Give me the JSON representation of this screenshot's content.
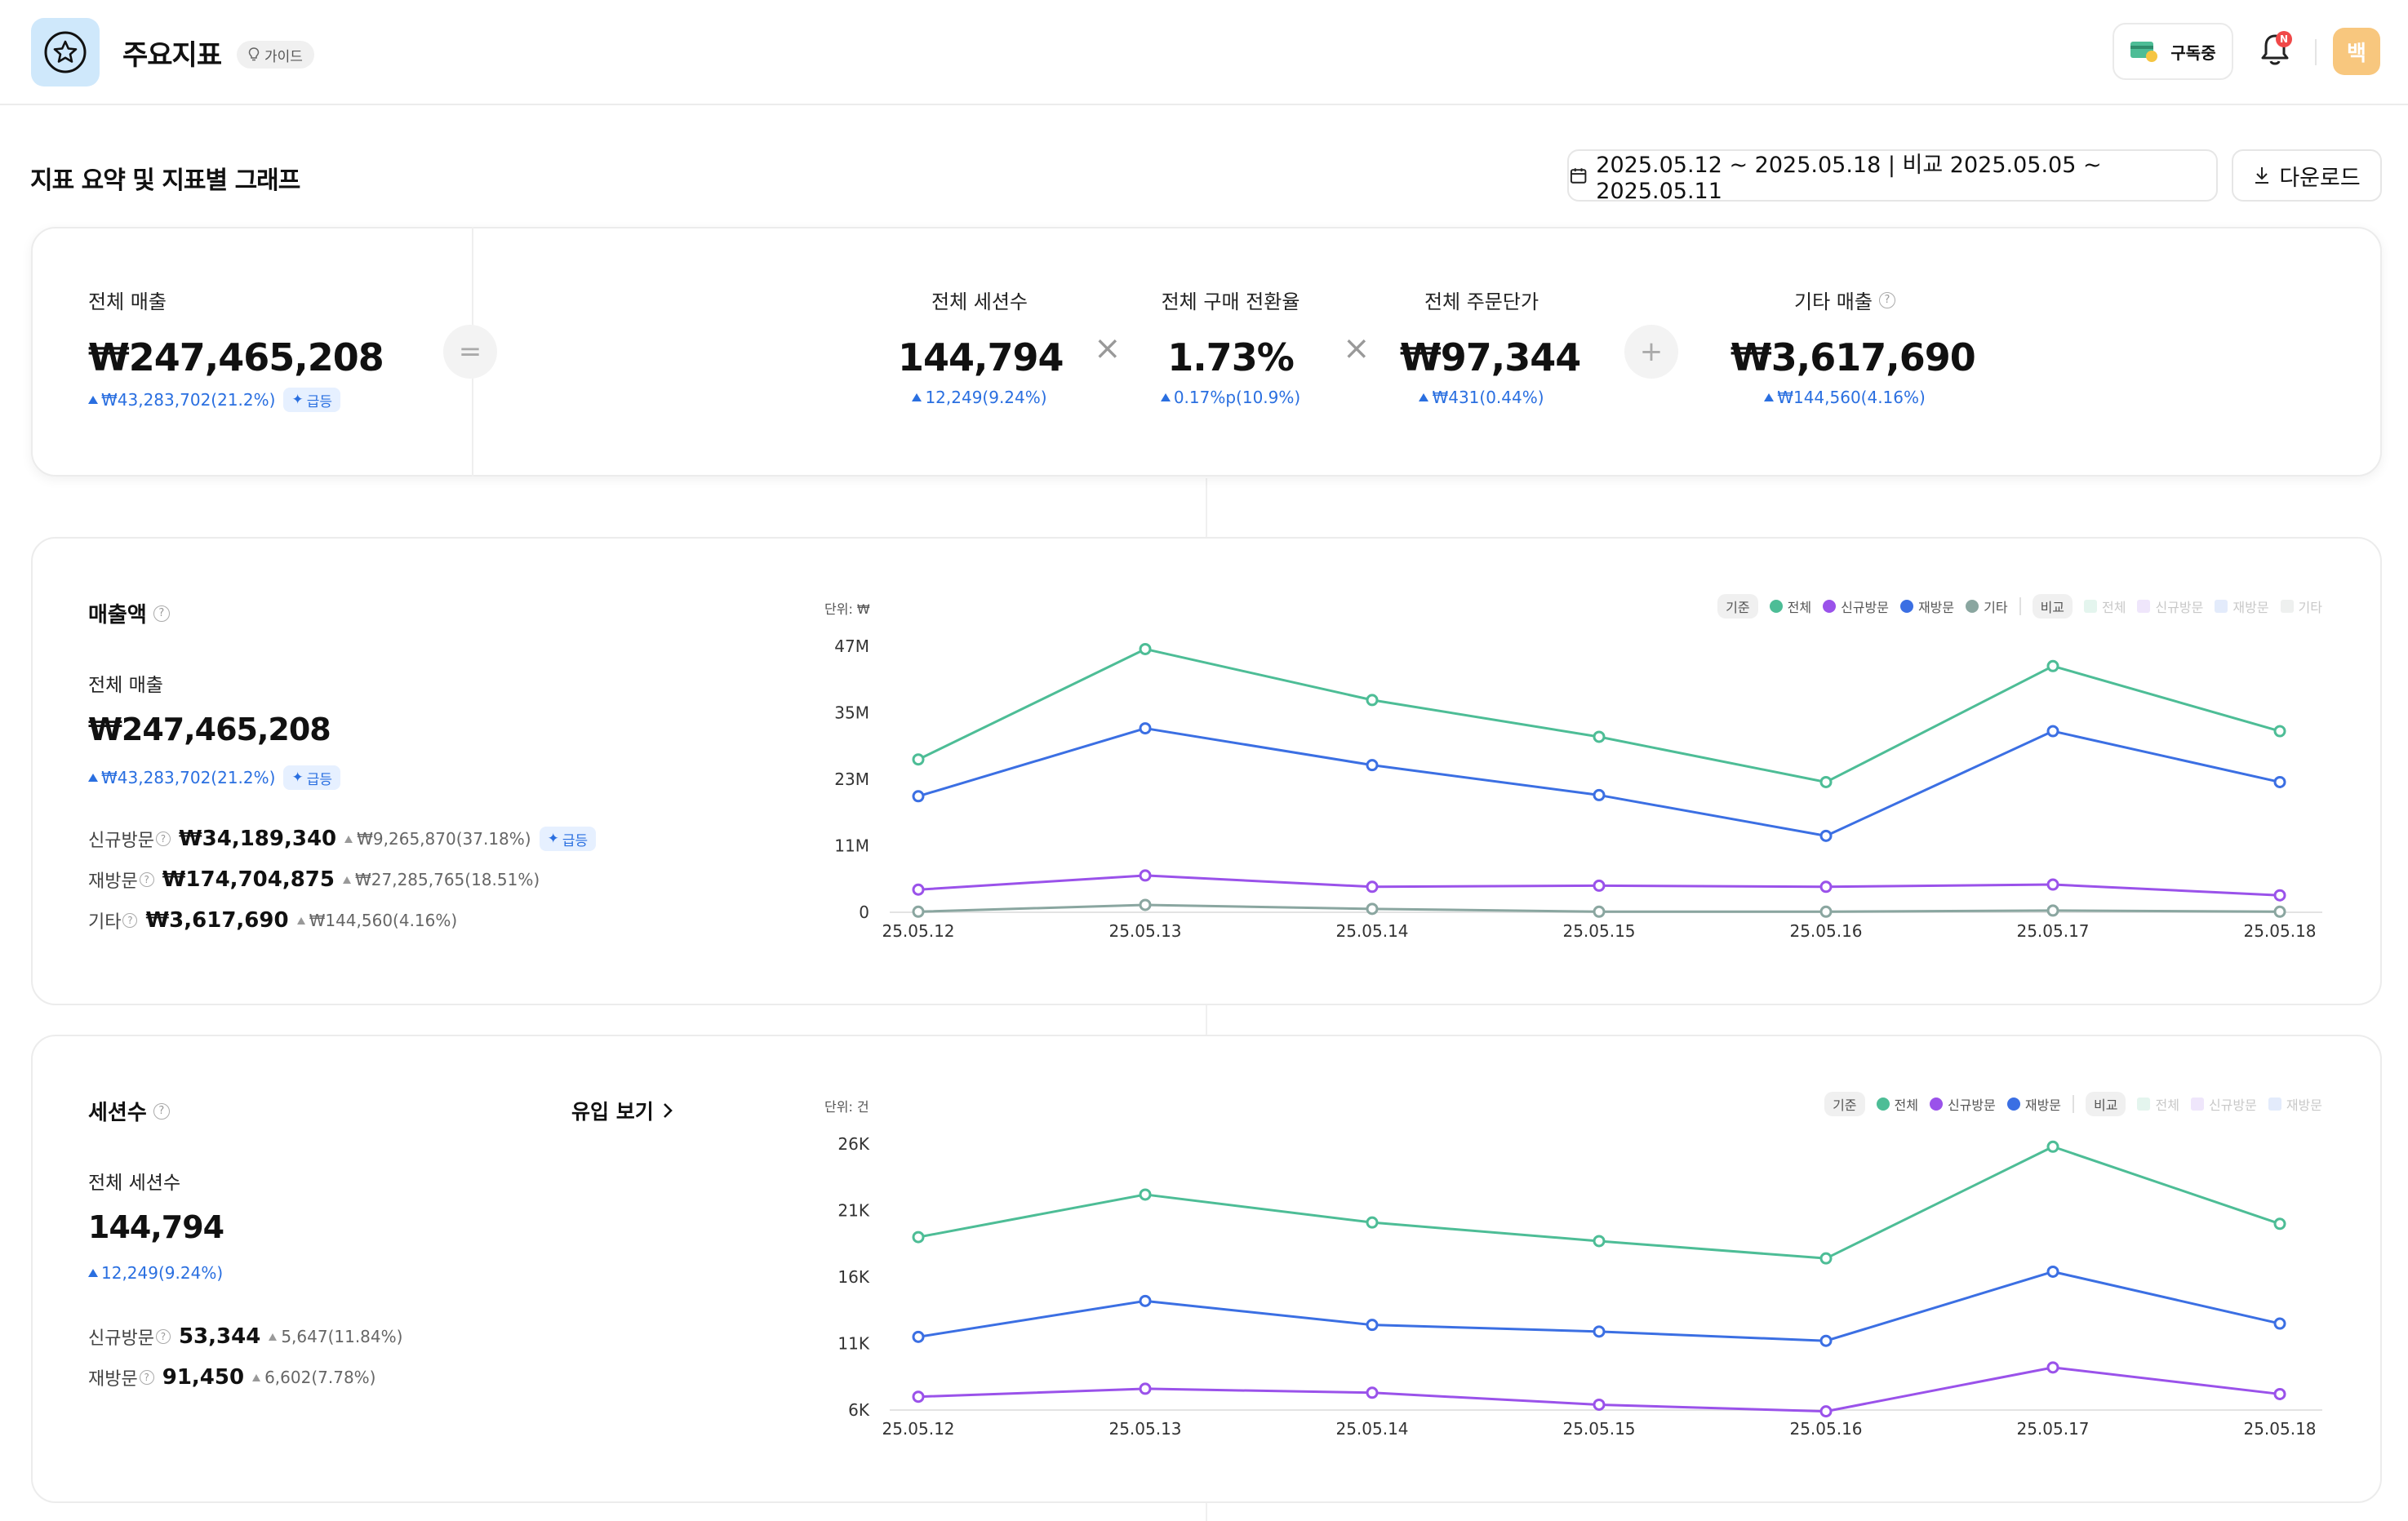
{
  "header": {
    "title": "주요지표",
    "guide_label": "가이드",
    "subscribe_label": "구독중",
    "notification_badge": "N",
    "avatar_text": "백"
  },
  "toolbar": {
    "section_title": "지표 요약 및 지표별 그래프",
    "date_range": "2025.05.12 ~ 2025.05.18 | 비교 2025.05.05 ~ 2025.05.11",
    "download_label": "다운로드"
  },
  "summary": {
    "total_sales": {
      "label": "전체 매출",
      "value": "₩247,465,208",
      "delta": "₩43,283,702(21.2%)",
      "badge": "급등"
    },
    "equals": "=",
    "sessions": {
      "label": "전체 세션수",
      "value": "144,794",
      "delta": "12,249(9.24%)"
    },
    "times1": "×",
    "conversion": {
      "label": "전체 구매 전환율",
      "value": "1.73%",
      "delta": "0.17%p(10.9%)"
    },
    "times2": "×",
    "aov": {
      "label": "전체 주문단가",
      "value": "₩97,344",
      "delta": "₩431(0.44%)"
    },
    "plus": "+",
    "other": {
      "label": "기타 매출",
      "value": "₩3,617,690",
      "delta": "₩144,560(4.16%)"
    }
  },
  "sales_card": {
    "title": "매출액",
    "total_label": "전체 매출",
    "total_value": "₩247,465,208",
    "total_delta": "₩43,283,702(21.2%)",
    "badge": "급등",
    "breakdown": [
      {
        "label": "신규방문",
        "value": "₩34,189,340",
        "delta": "₩9,265,870(37.18%)",
        "badge": "급등"
      },
      {
        "label": "재방문",
        "value": "₩174,704,875",
        "delta": "₩27,285,765(18.51%)"
      },
      {
        "label": "기타",
        "value": "₩3,617,690",
        "delta": "₩144,560(4.16%)"
      }
    ],
    "unit": "단위: ₩",
    "legend": {
      "base_label": "기준",
      "compare_label": "비교",
      "base": [
        "전체",
        "신규방문",
        "재방문",
        "기타"
      ],
      "compare": [
        "전체",
        "신규방문",
        "재방문",
        "기타"
      ]
    }
  },
  "sessions_card": {
    "title": "세션수",
    "inflow_label": "유입 보기",
    "total_label": "전체 세션수",
    "total_value": "144,794",
    "total_delta": "12,249(9.24%)",
    "breakdown": [
      {
        "label": "신규방문",
        "value": "53,344",
        "delta": "5,647(11.84%)"
      },
      {
        "label": "재방문",
        "value": "91,450",
        "delta": "6,602(7.78%)"
      }
    ],
    "unit": "단위: 건",
    "legend": {
      "base_label": "기준",
      "compare_label": "비교",
      "base": [
        "전체",
        "신규방문",
        "재방문"
      ],
      "compare": [
        "전체",
        "신규방문",
        "재방문"
      ]
    }
  },
  "colors": {
    "total": "#4dbd96",
    "new": "#9a52ea",
    "return": "#3b6fe3",
    "other": "#8aa6a0",
    "accent": "#2a6fe0"
  },
  "chart_data": [
    {
      "type": "line",
      "title": "매출액",
      "categories": [
        "25.05.12",
        "25.05.13",
        "25.05.14",
        "25.05.15",
        "25.05.16",
        "25.05.17",
        "25.05.18"
      ],
      "yticks": [
        "0",
        "11M",
        "23M",
        "35M",
        "47M"
      ],
      "ylim": [
        0,
        47
      ],
      "series": [
        {
          "name": "전체",
          "values": [
            27,
            46.5,
            37.5,
            31,
            23,
            43.5,
            32
          ]
        },
        {
          "name": "재방문",
          "values": [
            20.5,
            32.5,
            26,
            20.7,
            13.5,
            32,
            23
          ]
        },
        {
          "name": "신규방문",
          "values": [
            4,
            6.5,
            4.5,
            4.7,
            4.5,
            4.9,
            3
          ]
        },
        {
          "name": "기타",
          "values": [
            0.1,
            1.3,
            0.6,
            0.1,
            0.1,
            0.3,
            0.1
          ]
        }
      ]
    },
    {
      "type": "line",
      "title": "세션수",
      "categories": [
        "25.05.12",
        "25.05.13",
        "25.05.14",
        "25.05.15",
        "25.05.16",
        "25.05.17",
        "25.05.18"
      ],
      "yticks": [
        "6K",
        "11K",
        "16K",
        "21K",
        "26K"
      ],
      "ylim": [
        6,
        26
      ],
      "series": [
        {
          "name": "전체",
          "values": [
            19,
            22.2,
            20.1,
            18.7,
            17.4,
            25.8,
            20
          ]
        },
        {
          "name": "재방문",
          "values": [
            11.5,
            14.2,
            12.4,
            11.9,
            11.2,
            16.4,
            12.5
          ]
        },
        {
          "name": "신규방문",
          "values": [
            7,
            7.6,
            7.3,
            6.4,
            5.9,
            9.2,
            7.2
          ]
        }
      ]
    }
  ]
}
